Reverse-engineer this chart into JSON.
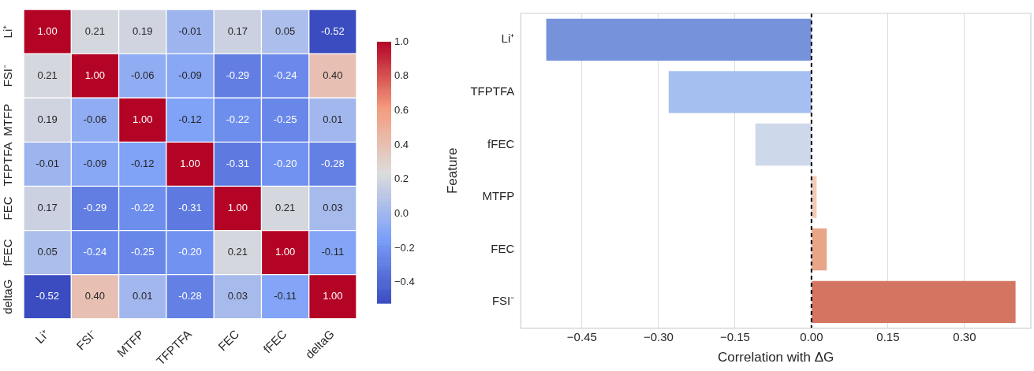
{
  "chart_data": [
    {
      "type": "heatmap",
      "categories": [
        "Li⁺",
        "FSI⁻",
        "MTFP",
        "TFPTFA",
        "FEC",
        "fFEC",
        "deltaG"
      ],
      "y_categories": [
        "Li⁺",
        "FSI⁻",
        "MTFP",
        "TFPTFA",
        "FEC",
        "fFEC",
        "deltaG"
      ],
      "cells": [
        [
          1.0,
          0.21,
          0.19,
          -0.01,
          0.17,
          0.05,
          -0.52
        ],
        [
          0.21,
          1.0,
          -0.06,
          -0.09,
          -0.29,
          -0.24,
          0.4
        ],
        [
          0.19,
          -0.06,
          1.0,
          -0.12,
          -0.22,
          -0.25,
          0.01
        ],
        [
          -0.01,
          -0.09,
          -0.12,
          1.0,
          -0.31,
          -0.2,
          -0.28
        ],
        [
          0.17,
          -0.29,
          -0.22,
          -0.31,
          1.0,
          0.21,
          0.03
        ],
        [
          0.05,
          -0.24,
          -0.25,
          -0.2,
          0.21,
          1.0,
          -0.11
        ],
        [
          -0.52,
          0.4,
          0.01,
          -0.28,
          0.03,
          -0.11,
          1.0
        ]
      ],
      "cell_labels": [
        [
          "1.00",
          "0.21",
          "0.19",
          "-0.01",
          "0.17",
          "0.05",
          "-0.52"
        ],
        [
          "0.21",
          "1.00",
          "-0.06",
          "-0.09",
          "-0.29",
          "-0.24",
          "0.40"
        ],
        [
          "0.19",
          "-0.06",
          "1.00",
          "-0.12",
          "-0.22",
          "-0.25",
          "0.01"
        ],
        [
          "-0.01",
          "-0.09",
          "-0.12",
          "1.00",
          "-0.31",
          "-0.20",
          "-0.28"
        ],
        [
          "0.17",
          "-0.29",
          "-0.22",
          "-0.31",
          "1.00",
          "0.21",
          "0.03"
        ],
        [
          "0.05",
          "-0.24",
          "-0.25",
          "-0.20",
          "0.21",
          "1.00",
          "-0.11"
        ],
        [
          "-0.52",
          "0.40",
          "0.01",
          "-0.28",
          "0.03",
          "-0.11",
          "1.00"
        ]
      ],
      "clim": [
        -0.52,
        1.0
      ],
      "cticks": [
        {
          "value": -0.4,
          "label": "−0.4"
        },
        {
          "value": -0.2,
          "label": "−0.2"
        },
        {
          "value": 0.0,
          "label": "0.0"
        },
        {
          "value": 0.2,
          "label": "0.2"
        },
        {
          "value": 0.4,
          "label": "0.4"
        },
        {
          "value": 0.6,
          "label": "0.6"
        },
        {
          "value": 0.8,
          "label": "0.8"
        },
        {
          "value": 1.0,
          "label": "1.0"
        }
      ]
    },
    {
      "type": "bar",
      "orientation": "horizontal",
      "categories": [
        "Li⁺",
        "TFPTFA",
        "fFEC",
        "MTFP",
        "FEC",
        "FSI⁻"
      ],
      "values": [
        -0.52,
        -0.28,
        -0.11,
        0.01,
        0.03,
        0.4
      ],
      "colors": [
        "#7592db",
        "#a5bff1",
        "#cdd8ea",
        "#f2cbb7",
        "#e8a688",
        "#d37561"
      ],
      "xlabel": "Correlation with ΔG",
      "ylabel": "Feature",
      "xlim": [
        -0.57,
        0.43
      ],
      "xticks": [
        {
          "value": -0.45,
          "label": "−0.45"
        },
        {
          "value": -0.3,
          "label": "−0.30"
        },
        {
          "value": -0.15,
          "label": "−0.15"
        },
        {
          "value": 0,
          "label": "0.00"
        },
        {
          "value": 0.15,
          "label": "0.15"
        },
        {
          "value": 0.3,
          "label": "0.30"
        }
      ],
      "grid": "x",
      "ref_lines": [
        {
          "axis": "x",
          "value": 0,
          "color": "#000000",
          "line_style": "dashed"
        }
      ]
    }
  ]
}
